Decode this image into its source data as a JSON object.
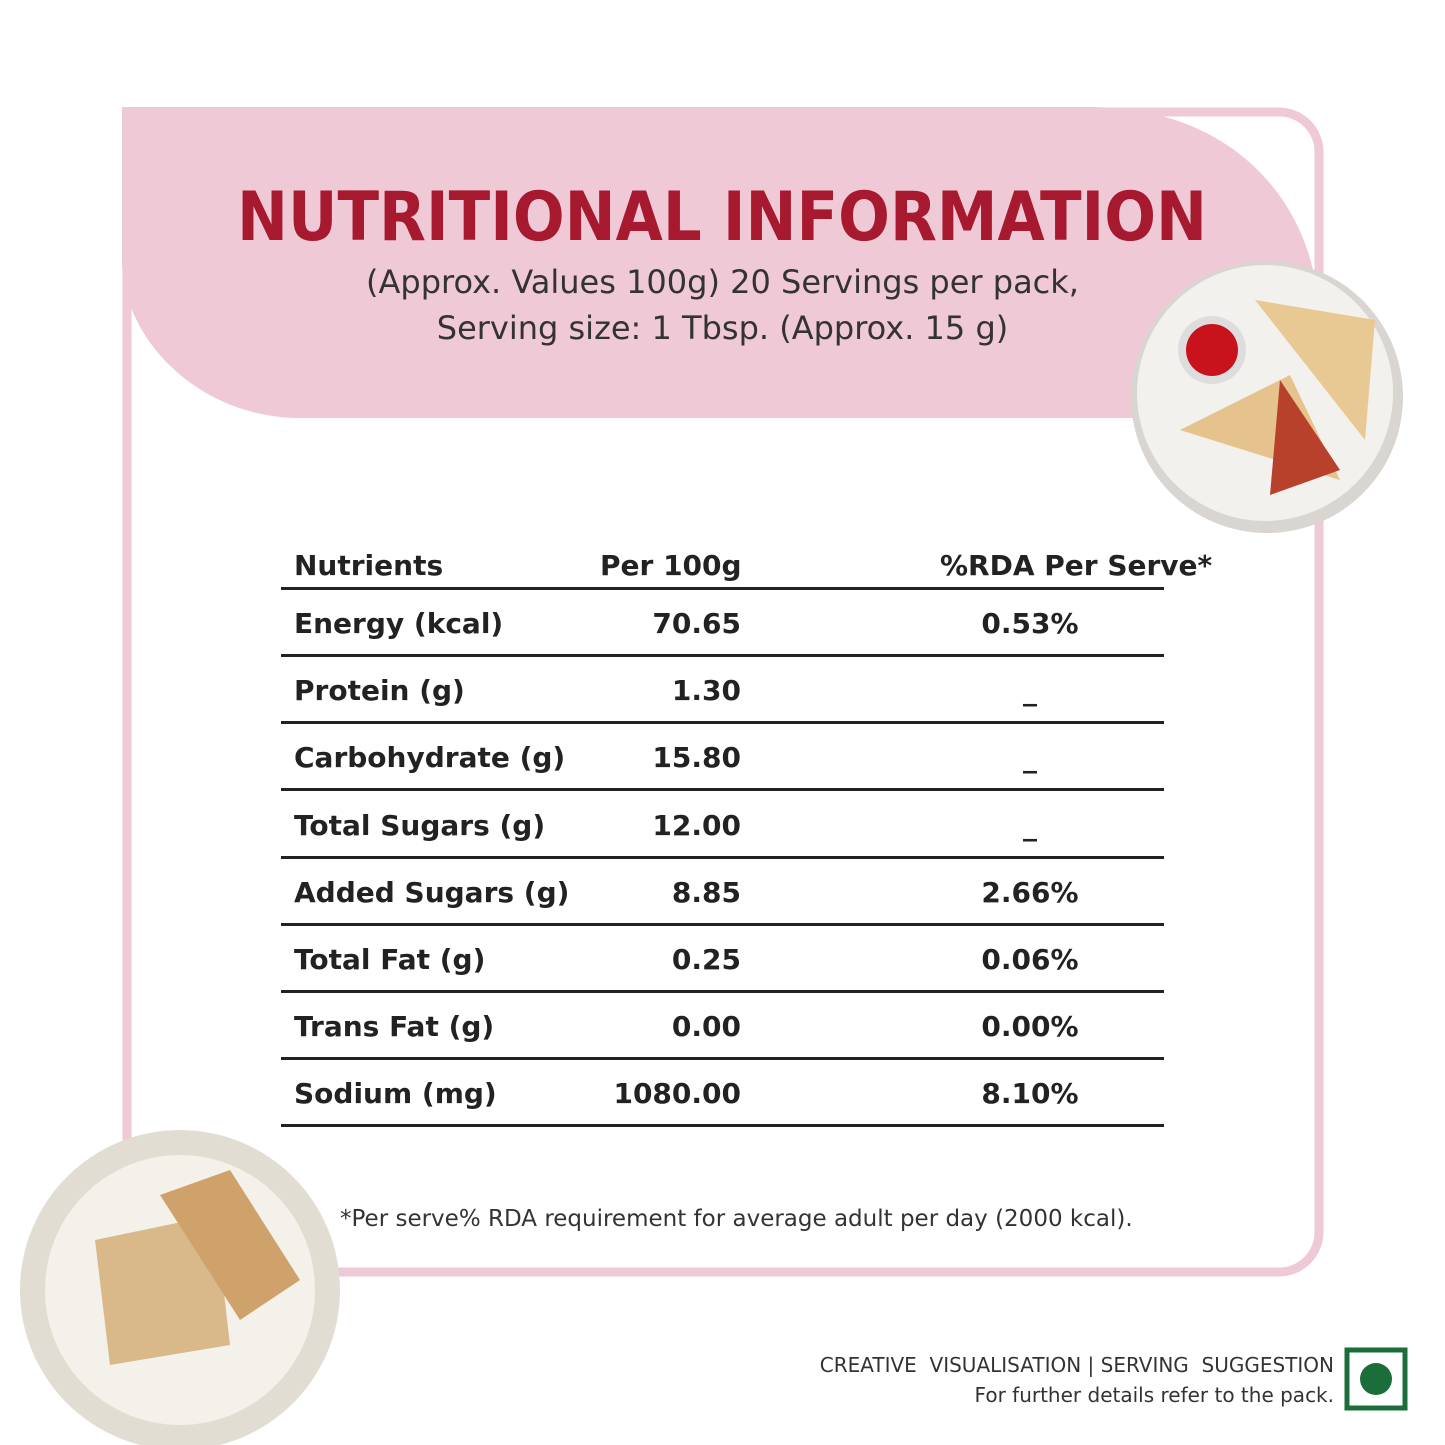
{
  "header": {
    "title": "NUTRITIONAL INFORMATION",
    "subtitle": [
      "(Approx. Values 100g) 20 Servings per pack,",
      "Serving size: 1 Tbsp. (Approx. 15 g)"
    ]
  },
  "table": {
    "columns": [
      "Nutrients",
      "Per 100g",
      "%RDA Per Serve*"
    ],
    "rows": [
      [
        "Energy (kcal)",
        "70.65",
        "0.53%"
      ],
      [
        "Protein (g)",
        "1.30",
        "_"
      ],
      [
        "Carbohydrate (g)",
        "15.80",
        "_"
      ],
      [
        "Total Sugars (g)",
        "12.00",
        "_"
      ],
      [
        "Added Sugars (g)",
        "8.85",
        "2.66%"
      ],
      [
        "Total Fat (g)",
        "0.25",
        "0.06%"
      ],
      [
        "Trans Fat (g)",
        "0.00",
        "0.00%"
      ],
      [
        "Sodium (mg)",
        "1080.00",
        "8.10%"
      ]
    ]
  },
  "footnote": "*Per serve% RDA requirement for average adult per day (2000 kcal).",
  "disclaimer": [
    "CREATIVE  VISUALISATION | SERVING  SUGGESTION",
    "For further details refer to the pack."
  ]
}
